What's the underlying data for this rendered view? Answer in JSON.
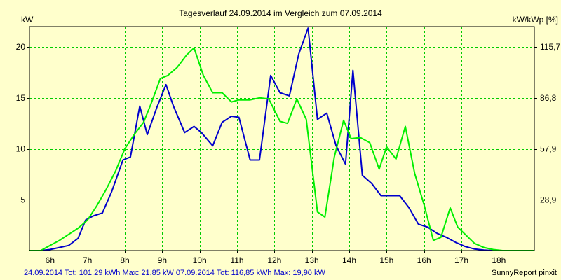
{
  "chart_data": {
    "type": "line",
    "title": "Tagesverlauf 24.09.2014 im Vergleich zum 07.09.2014",
    "ylabel": "kW",
    "y2label": "kW/kWp [%]",
    "xlim": [
      5.45,
      18.95
    ],
    "ylim": [
      0,
      22
    ],
    "x_ticks": [
      6,
      7,
      8,
      9,
      10,
      11,
      12,
      13,
      14,
      15,
      16,
      17,
      18
    ],
    "x_tick_labels": [
      "6h",
      "7h",
      "8h",
      "9h",
      "10h",
      "11h",
      "12h",
      "13h",
      "14h",
      "15h",
      "16h",
      "17h",
      "18h"
    ],
    "y_ticks": [
      5,
      10,
      15,
      20
    ],
    "y_tick_labels": [
      "5",
      "10",
      "15",
      "20"
    ],
    "y2_tick_labels": [
      "28,9",
      "57,9",
      "86,8",
      "115,7"
    ],
    "grid": true,
    "series": [
      {
        "name": "24.09.2014",
        "color": "#0000cc",
        "x": [
          5.45,
          5.75,
          6.0,
          6.25,
          6.5,
          6.75,
          6.95,
          7.15,
          7.4,
          7.65,
          7.95,
          8.15,
          8.4,
          8.6,
          8.85,
          9.1,
          9.3,
          9.6,
          9.85,
          10.05,
          10.35,
          10.6,
          10.85,
          11.05,
          11.35,
          11.6,
          11.9,
          12.15,
          12.4,
          12.65,
          12.9,
          13.15,
          13.4,
          13.65,
          13.9,
          14.1,
          14.35,
          14.6,
          14.85,
          15.1,
          15.35,
          15.6,
          15.85,
          16.1,
          16.35,
          16.6,
          16.85,
          17.1,
          17.35,
          17.6,
          17.85,
          18.1,
          18.35,
          18.6
        ],
        "y": [
          0,
          0,
          0.1,
          0.3,
          0.5,
          1.2,
          3.0,
          3.4,
          3.7,
          5.8,
          8.9,
          9.2,
          14.2,
          11.4,
          14.0,
          16.3,
          14.2,
          11.6,
          12.2,
          11.6,
          10.3,
          12.6,
          13.2,
          13.1,
          8.9,
          8.9,
          17.2,
          15.5,
          15.2,
          19.3,
          21.85,
          12.9,
          13.5,
          10.3,
          8.5,
          17.7,
          7.4,
          6.6,
          5.4,
          5.4,
          5.4,
          4.2,
          2.6,
          2.3,
          1.7,
          1.3,
          0.8,
          0.4,
          0.15,
          0.05,
          0,
          0,
          0,
          0
        ]
      },
      {
        "name": "07.09.2014",
        "color": "#00ee00",
        "x": [
          5.45,
          5.75,
          6.0,
          6.25,
          6.5,
          6.75,
          7.0,
          7.25,
          7.5,
          7.75,
          8.0,
          8.25,
          8.5,
          8.7,
          8.95,
          9.15,
          9.4,
          9.65,
          9.85,
          10.1,
          10.35,
          10.6,
          10.85,
          11.05,
          11.35,
          11.6,
          11.85,
          12.15,
          12.35,
          12.6,
          12.85,
          13.15,
          13.35,
          13.6,
          13.85,
          14.05,
          14.3,
          14.55,
          14.8,
          15.0,
          15.25,
          15.5,
          15.75,
          16.0,
          16.25,
          16.45,
          16.7,
          16.9,
          17.1,
          17.35,
          17.6,
          17.85,
          18.1,
          18.35,
          18.6,
          18.95
        ],
        "y": [
          0,
          0,
          0.5,
          1.0,
          1.6,
          2.2,
          3.0,
          4.4,
          6.0,
          7.8,
          10.0,
          11.4,
          12.6,
          14.4,
          16.9,
          17.2,
          18.0,
          19.2,
          19.9,
          17.2,
          15.5,
          15.5,
          14.6,
          14.8,
          14.8,
          15.0,
          14.9,
          12.7,
          12.5,
          14.9,
          12.9,
          3.8,
          3.3,
          9.2,
          12.8,
          11.0,
          11.1,
          10.6,
          8.0,
          10.2,
          9.0,
          12.2,
          7.6,
          4.5,
          1.0,
          1.3,
          4.2,
          2.3,
          1.6,
          0.7,
          0.3,
          0.1,
          0,
          0,
          0,
          0
        ]
      }
    ],
    "footer": {
      "left": "24.09.2014 Tot: 101,29 kWh Max: 21,85 kW 07.09.2014 Tot: 116,85 kWh Max: 19,90 kW",
      "right": "SunnyReport pinxit"
    }
  }
}
